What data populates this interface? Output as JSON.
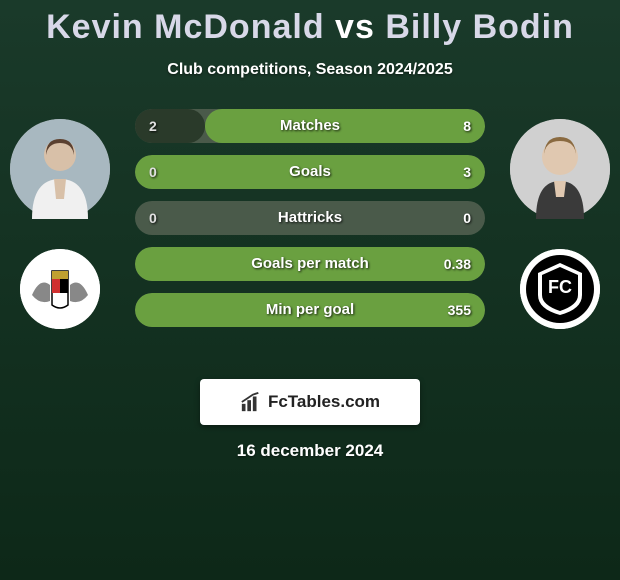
{
  "title": {
    "player1": "Kevin McDonald",
    "vs": "vs",
    "player2": "Billy Bodin"
  },
  "subtitle": "Club competitions, Season 2024/2025",
  "stats": [
    {
      "label": "Matches",
      "left_val": "2",
      "right_val": "8",
      "left_pct": 20,
      "right_pct": 80
    },
    {
      "label": "Goals",
      "left_val": "0",
      "right_val": "3",
      "left_pct": 0,
      "right_pct": 100
    },
    {
      "label": "Hattricks",
      "left_val": "0",
      "right_val": "0",
      "left_pct": 0,
      "right_pct": 0
    },
    {
      "label": "Goals per match",
      "left_val": "",
      "right_val": "0.38",
      "left_pct": 0,
      "right_pct": 100
    },
    {
      "label": "Min per goal",
      "left_val": "",
      "right_val": "355",
      "left_pct": 0,
      "right_pct": 100
    }
  ],
  "colors": {
    "bar_bg": "#4a5a4a",
    "fill_left": "#2a3a2a",
    "fill_right": "#6aa040",
    "page_bg_top": "#1a3a2a",
    "page_bg_bottom": "#0d2818",
    "title_color": "#d8d8e8",
    "text_color": "#ffffff"
  },
  "branding": {
    "text": "FcTables.com"
  },
  "date": "16 december 2024"
}
